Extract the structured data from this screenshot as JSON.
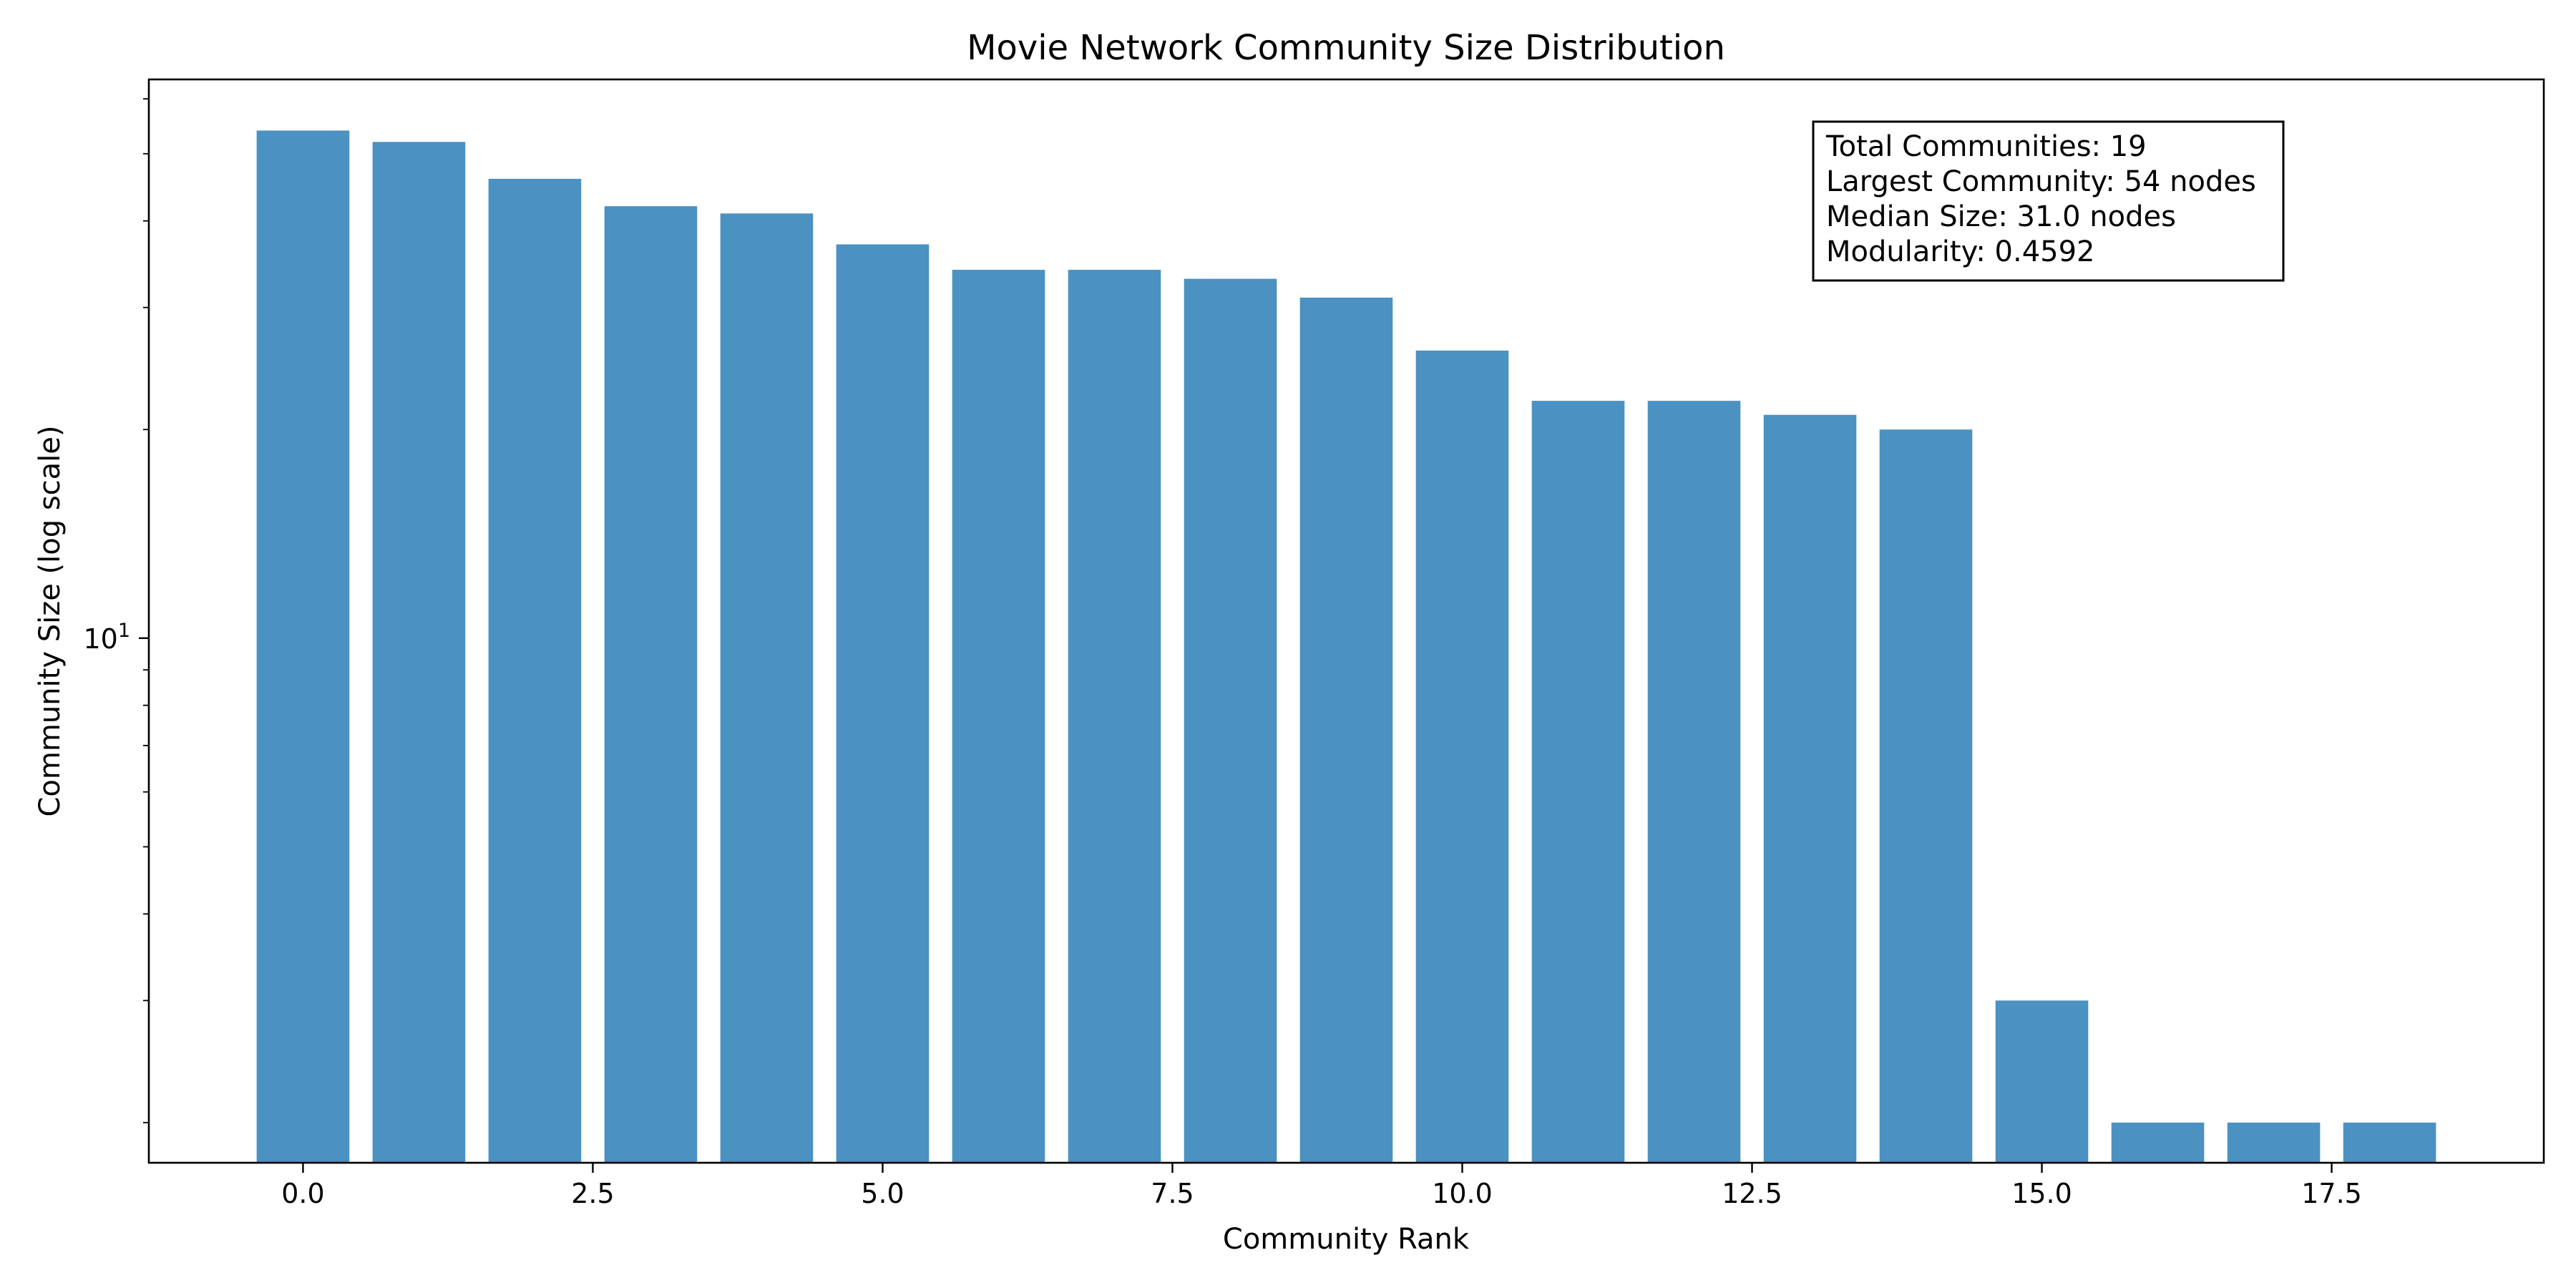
{
  "chart_data": {
    "type": "bar",
    "title": "Movie Network Community Size Distribution",
    "xlabel": "Community Rank",
    "ylabel": "Community Size (log scale)",
    "y_scale": "log",
    "x": [
      0,
      1,
      2,
      3,
      4,
      5,
      6,
      7,
      8,
      9,
      10,
      11,
      12,
      13,
      14,
      15,
      16,
      17,
      18
    ],
    "values": [
      54,
      52,
      46,
      42,
      41,
      37,
      34,
      34,
      33,
      31,
      26,
      22,
      22,
      21,
      20,
      3,
      2,
      2,
      2
    ],
    "xlim": [
      -1.33,
      19.33
    ],
    "ylim": [
      1.75,
      64
    ],
    "x_ticks": [
      0,
      2.5,
      5,
      7.5,
      10,
      12.5,
      15,
      17.5
    ],
    "x_tick_labels": [
      "0.0",
      "2.5",
      "5.0",
      "7.5",
      "10.0",
      "12.5",
      "15.0",
      "17.5"
    ],
    "y_major_tick": 10,
    "y_minor_ticks": [
      2,
      3,
      4,
      5,
      6,
      7,
      8,
      9,
      20,
      30,
      40,
      50,
      60
    ],
    "bar_color": "#4b91c2",
    "grid": false,
    "stats_box": {
      "position": "top-right",
      "lines": [
        "Total Communities: 19",
        "Largest Community: 54 nodes",
        "Median Size: 31.0 nodes",
        "Modularity: 0.4592"
      ]
    }
  }
}
